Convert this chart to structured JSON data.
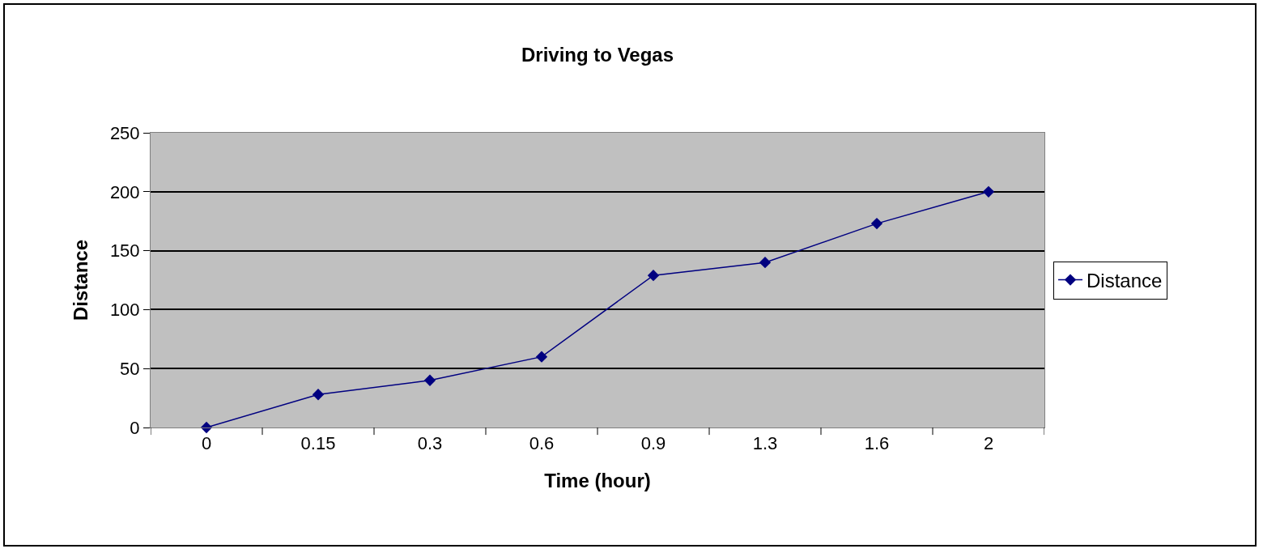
{
  "chart_data": {
    "type": "line",
    "title": "Driving to Vegas",
    "xlabel": "Time (hour)",
    "ylabel": "Distance",
    "categories": [
      "0",
      "0.15",
      "0.3",
      "0.6",
      "0.9",
      "1.3",
      "1.6",
      "2"
    ],
    "series": [
      {
        "name": "Distance",
        "color": "#000080",
        "values": [
          0,
          28,
          40,
          60,
          129,
          140,
          173,
          200
        ]
      }
    ],
    "ylim": [
      0,
      250
    ],
    "yticks": [
      0,
      50,
      100,
      150,
      200,
      250
    ],
    "grid": "y",
    "legend": "right",
    "marker": "diamond",
    "line_style": "solid"
  }
}
